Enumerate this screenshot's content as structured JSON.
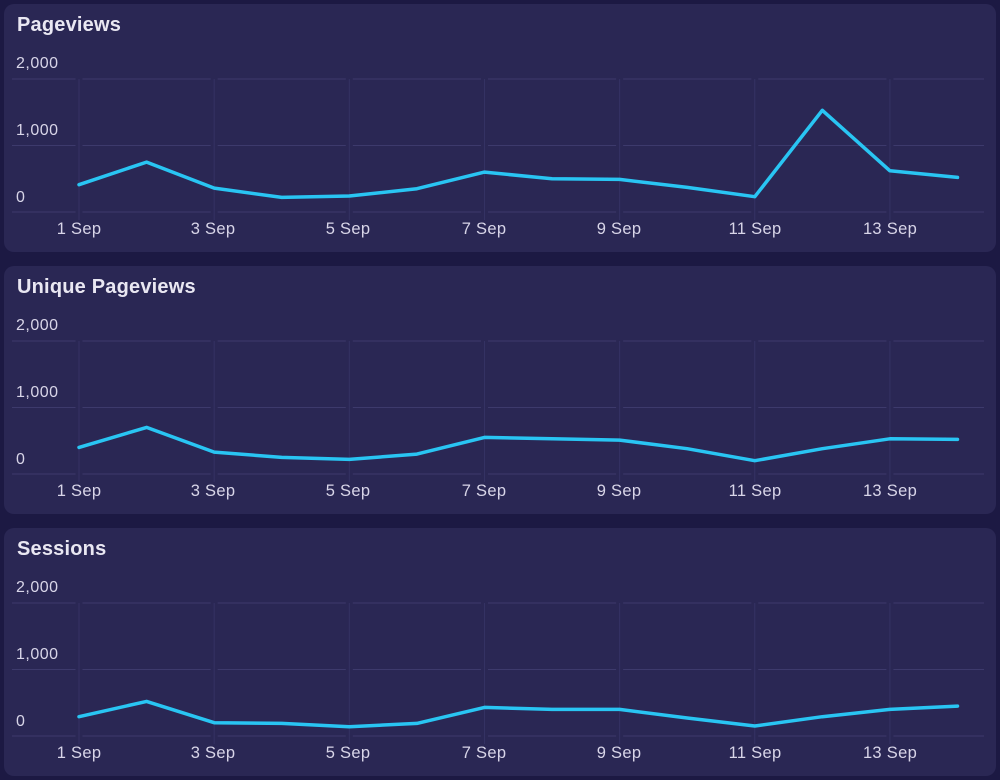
{
  "colors": {
    "page_background": "#1c1943",
    "card_background": "#2a2754",
    "grid_line": "#3d3a6c",
    "grid_line_vertical": "#353264",
    "series_line": "#29c5f3",
    "title_text": "#e9e7f2",
    "axis_text": "#d8d5e8"
  },
  "axes": {
    "y_ticks": [
      "2,000",
      "1,000",
      "0"
    ],
    "x_ticks": [
      "1 Sep",
      "3 Sep",
      "5 Sep",
      "7 Sep",
      "9 Sep",
      "11 Sep",
      "13 Sep"
    ]
  },
  "chart_data": [
    {
      "type": "line",
      "title": "Pageviews",
      "x": [
        "1 Sep",
        "2 Sep",
        "3 Sep",
        "4 Sep",
        "5 Sep",
        "6 Sep",
        "7 Sep",
        "8 Sep",
        "9 Sep",
        "10 Sep",
        "11 Sep",
        "12 Sep",
        "13 Sep",
        "14 Sep"
      ],
      "values": [
        410,
        750,
        360,
        220,
        240,
        350,
        600,
        500,
        490,
        370,
        230,
        1530,
        620,
        520
      ],
      "xlabel": "",
      "ylabel": "",
      "ylim": [
        0,
        2000
      ],
      "y_gridlines": [
        0,
        1000,
        2000
      ],
      "x_tick_labels": [
        "1 Sep",
        "3 Sep",
        "5 Sep",
        "7 Sep",
        "9 Sep",
        "11 Sep",
        "13 Sep"
      ],
      "grid": true,
      "legend": false,
      "line_color": "#29c5f3"
    },
    {
      "type": "line",
      "title": "Unique Pageviews",
      "x": [
        "1 Sep",
        "2 Sep",
        "3 Sep",
        "4 Sep",
        "5 Sep",
        "6 Sep",
        "7 Sep",
        "8 Sep",
        "9 Sep",
        "10 Sep",
        "11 Sep",
        "12 Sep",
        "13 Sep",
        "14 Sep"
      ],
      "values": [
        400,
        700,
        330,
        250,
        220,
        300,
        550,
        530,
        510,
        380,
        200,
        380,
        530,
        520
      ],
      "xlabel": "",
      "ylabel": "",
      "ylim": [
        0,
        2000
      ],
      "y_gridlines": [
        0,
        1000,
        2000
      ],
      "x_tick_labels": [
        "1 Sep",
        "3 Sep",
        "5 Sep",
        "7 Sep",
        "9 Sep",
        "11 Sep",
        "13 Sep"
      ],
      "grid": true,
      "legend": false,
      "line_color": "#29c5f3"
    },
    {
      "type": "line",
      "title": "Sessions",
      "x": [
        "1 Sep",
        "2 Sep",
        "3 Sep",
        "4 Sep",
        "5 Sep",
        "6 Sep",
        "7 Sep",
        "8 Sep",
        "9 Sep",
        "10 Sep",
        "11 Sep",
        "12 Sep",
        "13 Sep",
        "14 Sep"
      ],
      "values": [
        290,
        520,
        200,
        190,
        140,
        190,
        430,
        400,
        400,
        270,
        150,
        290,
        400,
        450
      ],
      "xlabel": "",
      "ylabel": "",
      "ylim": [
        0,
        2000
      ],
      "y_gridlines": [
        0,
        1000,
        2000
      ],
      "x_tick_labels": [
        "1 Sep",
        "3 Sep",
        "5 Sep",
        "7 Sep",
        "9 Sep",
        "11 Sep",
        "13 Sep"
      ],
      "grid": true,
      "legend": false,
      "line_color": "#29c5f3"
    }
  ]
}
